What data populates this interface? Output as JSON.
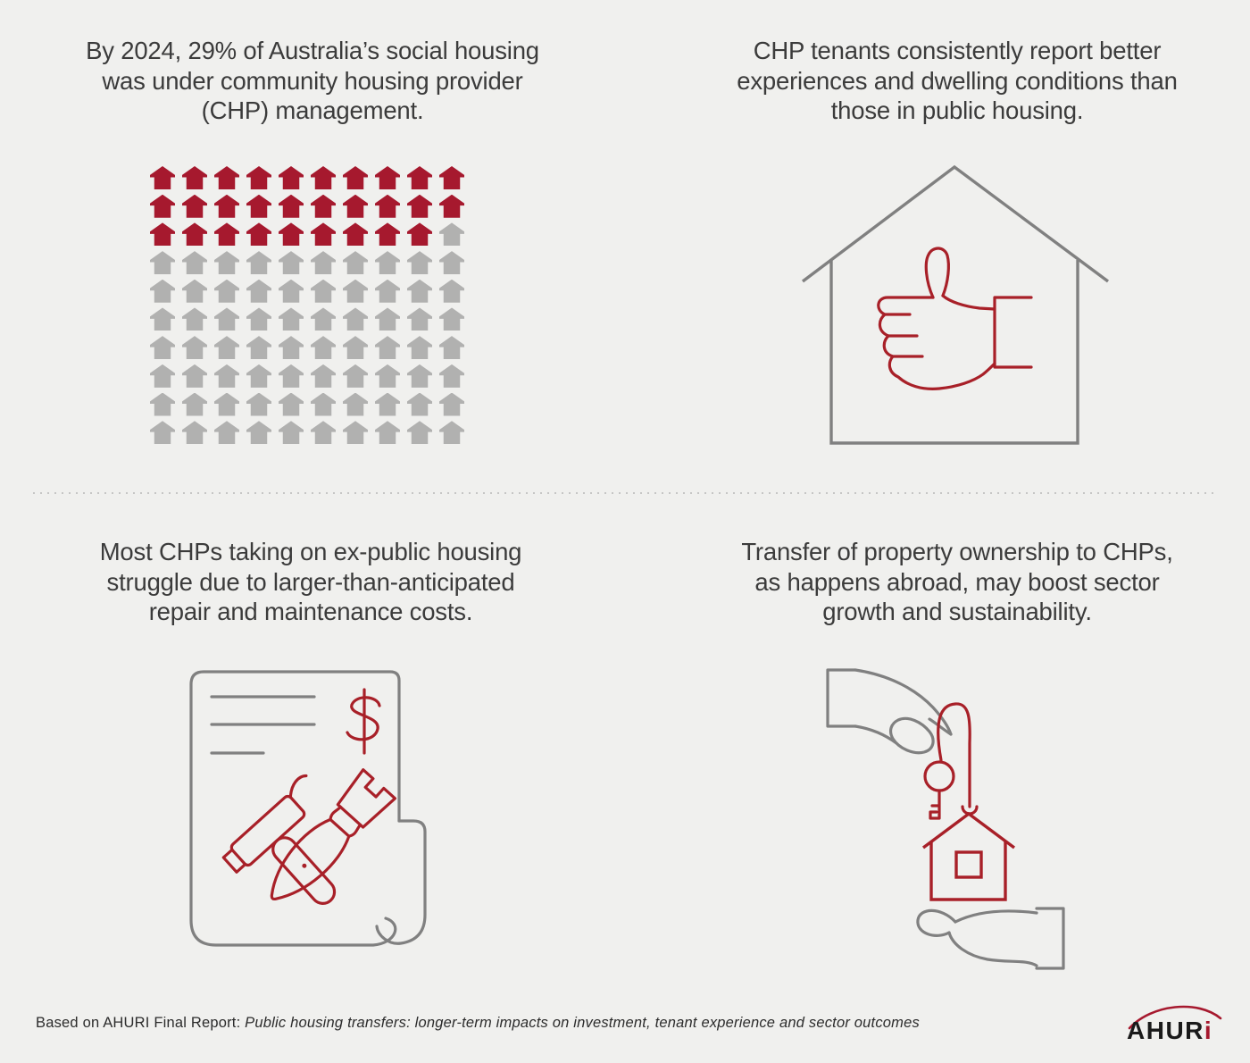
{
  "colors": {
    "background": "#F0F0EE",
    "text_dark": "#3B3B3B",
    "brand_red": "#A6192E",
    "icon_red": "#A82028",
    "icon_gray": "#808080",
    "empty_gray": "#B1B1B0",
    "divider": "#C6C6C5",
    "footer_text": "#2C2C2C",
    "logo_black": "#1A1A1A"
  },
  "quadrants": {
    "top_left": {
      "lines": [
        "By 2024, 29% of Australia’s social housing",
        "was under community housing provider",
        "(CHP) management."
      ]
    },
    "top_right": {
      "lines": [
        "CHP tenants consistently report better",
        "experiences and dwelling conditions than",
        "those in public housing."
      ],
      "icon": "house-with-thumbs-up"
    },
    "bottom_left": {
      "lines": [
        "Most CHPs taking on ex-public housing",
        "struggle due to larger-than-anticipated",
        "repair and maintenance costs."
      ],
      "icon": "repair-bill-with-tools"
    },
    "bottom_right": {
      "lines": [
        "Transfer of property ownership to CHPs,",
        "as happens abroad, may boost sector",
        "growth and sustainability."
      ],
      "icon": "hand-giving-house-keys-to-open-hand"
    }
  },
  "chart_data": {
    "type": "waffle",
    "title": "By 2024, 29% of Australia’s social housing was under community housing provider (CHP) management.",
    "unit_icon": "house",
    "total_icons": 100,
    "filled_icons": 29,
    "empty_icons": 71,
    "columns": 10,
    "rows": 10,
    "filled_color": "#A6192E",
    "empty_color": "#B1B1B0",
    "filled_meaning": "Social housing under CHP management (29%)",
    "empty_meaning": "Other social housing (71%)",
    "value_label": "29%"
  },
  "footer": {
    "source_prefix": "Based on AHURI Final Report: ",
    "source_title": "Public housing transfers: longer-term impacts on investment, tenant experience and sector outcomes",
    "logo_text": "AHUR",
    "logo_i": "i"
  }
}
